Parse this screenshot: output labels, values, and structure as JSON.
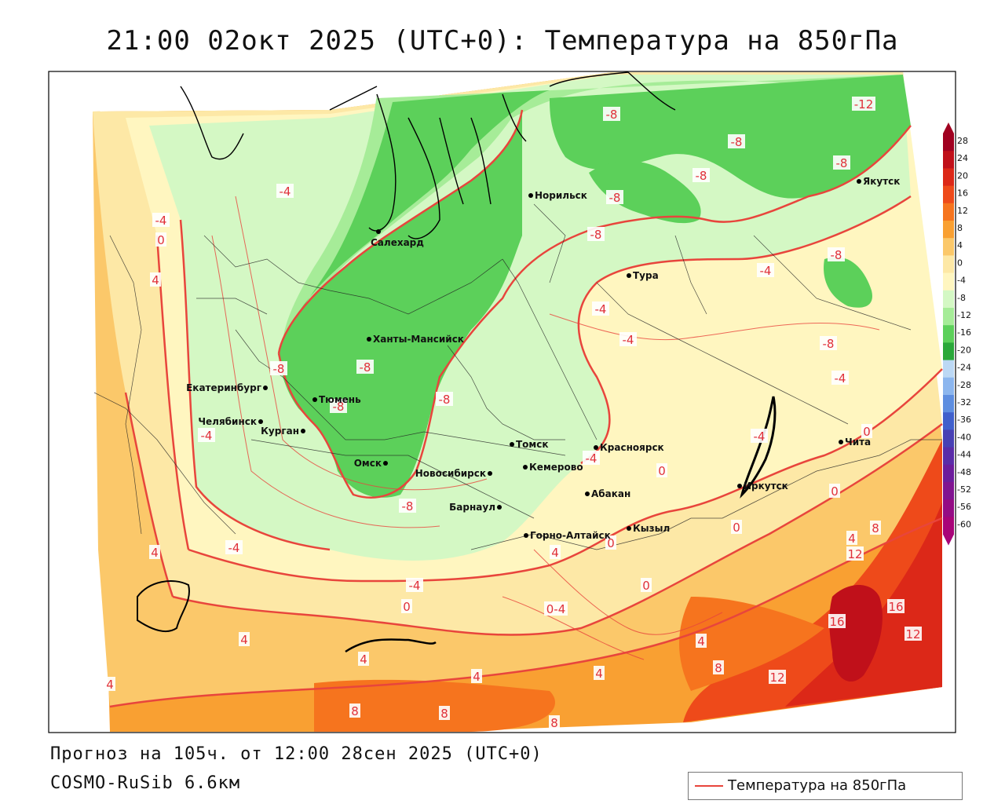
{
  "title": "21:00 02окт 2025 (UTC+0): Температура на 850гПа",
  "forecast_text": "Прогноз на 105ч. от 12:00 28сен 2025 (UTC+0)",
  "model_text": "COSMO-RuSib 6.6км",
  "legend_label": "Температура на 850гПа",
  "colorbar": [
    {
      "label": "28",
      "color": "#a00020"
    },
    {
      "label": "24",
      "color": "#c0101a"
    },
    {
      "label": "20",
      "color": "#dc2818"
    },
    {
      "label": "16",
      "color": "#ee4a1a"
    },
    {
      "label": "12",
      "color": "#f6741e"
    },
    {
      "label": "8",
      "color": "#f9a032"
    },
    {
      "label": "4",
      "color": "#fbc86a"
    },
    {
      "label": "0",
      "color": "#fde8a6"
    },
    {
      "label": "-4",
      "color": "#fff6c0"
    },
    {
      "label": "-8",
      "color": "#d4f8c4"
    },
    {
      "label": "-12",
      "color": "#a6ec98"
    },
    {
      "label": "-16",
      "color": "#5cd05a"
    },
    {
      "label": "-20",
      "color": "#2aa83a"
    },
    {
      "label": "-24",
      "color": "#bcd8f4"
    },
    {
      "label": "-28",
      "color": "#8cb6ee"
    },
    {
      "label": "-32",
      "color": "#5e8ee0"
    },
    {
      "label": "-36",
      "color": "#4060cc"
    },
    {
      "label": "-40",
      "color": "#4840b4"
    },
    {
      "label": "-44",
      "color": "#5a2ca8"
    },
    {
      "label": "-48",
      "color": "#6c1c9c"
    },
    {
      "label": "-52",
      "color": "#801490"
    },
    {
      "label": "-56",
      "color": "#940c84"
    },
    {
      "label": "-60",
      "color": "#a80478"
    }
  ],
  "cities": [
    {
      "name": "Норильск"
    },
    {
      "name": "Салехард"
    },
    {
      "name": "Якутск"
    },
    {
      "name": "Тура"
    },
    {
      "name": "Ханты-Мансийск"
    },
    {
      "name": "Екатеринбург"
    },
    {
      "name": "Тюмень"
    },
    {
      "name": "Челябинск"
    },
    {
      "name": "Курган"
    },
    {
      "name": "Омск"
    },
    {
      "name": "Новосибирск"
    },
    {
      "name": "Томск"
    },
    {
      "name": "Кемерово"
    },
    {
      "name": "Красноярск"
    },
    {
      "name": "Абакан"
    },
    {
      "name": "Барнаул"
    },
    {
      "name": "Горно-Алтайск"
    },
    {
      "name": "Кызыл"
    },
    {
      "name": "Иркутск"
    },
    {
      "name": "Чита"
    }
  ],
  "isotherm_labels": [
    "-12",
    "-8",
    "-8",
    "-8",
    "-8",
    "-8",
    "-8",
    "-8",
    "-8",
    "-8",
    "-8",
    "-8",
    "-8",
    "-8",
    "-4",
    "-4",
    "-4",
    "-4",
    "-4",
    "-4",
    "-4",
    "-4",
    "-4",
    "-4",
    "-4",
    "0",
    "0",
    "0",
    "0",
    "0",
    "0",
    "0",
    "0",
    "4",
    "4",
    "4",
    "4",
    "4",
    "4",
    "4",
    "4",
    "4",
    "8",
    "8",
    "8",
    "8",
    "8",
    "12",
    "12",
    "12",
    "16",
    "16",
    "0-4",
    "4"
  ],
  "colors": {
    "isotherm": "#e8453c",
    "frame": "#000000"
  }
}
